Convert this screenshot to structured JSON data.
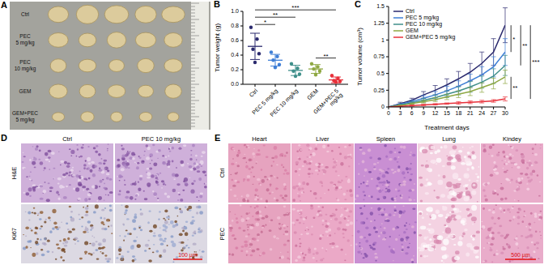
{
  "panel_labels": [
    "A",
    "B",
    "C",
    "D",
    "E"
  ],
  "photo_panels": {
    "A": {
      "rows": [
        "Ctrl",
        "PEC 5 mg/kg",
        "PEC 10 mg/kg",
        "GEM",
        "GEM+PEC 5 mg/kg"
      ]
    },
    "D": {
      "columns": [
        "Ctrl",
        "PEC 10 mg/kg"
      ],
      "rows": [
        "H&E",
        "Ki67"
      ],
      "scale_bar": "100 μm"
    },
    "E": {
      "columns": [
        "Heart",
        "Liver",
        "Spleen",
        "Lung",
        "Kindey"
      ],
      "rows": [
        "Ctrl",
        "PEC"
      ],
      "scale_bar": "500 μm"
    }
  },
  "chart_data": [
    {
      "type": "scatter",
      "y_label": "Tumor weight (g)",
      "categories": [
        "Ctrl",
        "PEC 5 mg/kg",
        "PEC 10 mg/kg",
        "GEM",
        "GEM+PEC 5 mg/kg"
      ],
      "values": [
        [
          0.78,
          0.62,
          0.48,
          0.42,
          0.3
        ],
        [
          0.44,
          0.38,
          0.33,
          0.27,
          0.23
        ],
        [
          0.28,
          0.22,
          0.18,
          0.14,
          0.11
        ],
        [
          0.28,
          0.24,
          0.21,
          0.18,
          0.13
        ],
        [
          0.12,
          0.08,
          0.05,
          0.04,
          0.03
        ]
      ],
      "means": [
        0.52,
        0.33,
        0.19,
        0.21,
        0.06
      ],
      "errors": [
        0.18,
        0.08,
        0.07,
        0.06,
        0.04
      ],
      "colors": [
        "#2b2a6e",
        "#3f7fd6",
        "#3f8f8a",
        "#8fa843",
        "#e8303a"
      ],
      "ylim": [
        0,
        1
      ],
      "yticks": [
        {
          "value": 0,
          "label": "0.0"
        },
        0.2,
        0.4,
        0.6,
        0.8,
        {
          "value": 1,
          "label": "1.0"
        }
      ],
      "annotations": [
        {
          "from": "Ctrl",
          "to": "PEC 5 mg/kg",
          "label": "*"
        },
        {
          "from": "Ctrl",
          "to": "PEC 10 mg/kg",
          "label": "**"
        },
        {
          "from": "Ctrl",
          "to": "GEM+PEC 5 mg/kg",
          "label": "***"
        },
        {
          "from": "GEM",
          "to": "GEM+PEC 5 mg/kg",
          "label": "**"
        }
      ]
    },
    {
      "type": "line",
      "x_label": "Treatment days",
      "y_label": "Tumor volume (cm³)",
      "x": [
        0,
        3,
        6,
        9,
        12,
        15,
        18,
        21,
        24,
        27,
        30
      ],
      "xlim": [
        0,
        30
      ],
      "xticks": [
        0,
        3,
        6,
        9,
        12,
        15,
        18,
        21,
        24,
        27,
        30
      ],
      "ylim": [
        0,
        1.5
      ],
      "yticks": [
        0,
        0.25,
        0.5,
        0.75,
        1,
        1.25,
        1.5
      ],
      "legend": "upper left",
      "series": [
        {
          "name": "Ctrl",
          "color": "#2b2a6e",
          "values": [
            0,
            0.05,
            0.1,
            0.18,
            0.25,
            0.33,
            0.42,
            0.52,
            0.65,
            0.82,
            1.22
          ],
          "errors": [
            0,
            0.02,
            0.03,
            0.05,
            0.07,
            0.09,
            0.11,
            0.13,
            0.17,
            0.2,
            0.26
          ]
        },
        {
          "name": "PEC 5 mg/kg",
          "color": "#3f7fd6",
          "values": [
            0,
            0.04,
            0.08,
            0.13,
            0.18,
            0.24,
            0.31,
            0.39,
            0.48,
            0.6,
            0.82
          ],
          "errors": [
            0,
            0.01,
            0.02,
            0.04,
            0.05,
            0.07,
            0.08,
            0.1,
            0.12,
            0.15,
            0.2
          ]
        },
        {
          "name": "PEC 10 mg/kg",
          "color": "#3f8f8a",
          "values": [
            0,
            0.03,
            0.06,
            0.1,
            0.14,
            0.19,
            0.24,
            0.3,
            0.37,
            0.46,
            0.62
          ],
          "errors": [
            0,
            0.01,
            0.02,
            0.03,
            0.04,
            0.05,
            0.06,
            0.08,
            0.09,
            0.11,
            0.15
          ]
        },
        {
          "name": "GEM",
          "color": "#8fa843",
          "values": [
            0,
            0.02,
            0.05,
            0.08,
            0.11,
            0.15,
            0.19,
            0.23,
            0.29,
            0.35,
            0.45
          ],
          "errors": [
            0,
            0.01,
            0.01,
            0.02,
            0.03,
            0.04,
            0.05,
            0.06,
            0.07,
            0.08,
            0.1
          ]
        },
        {
          "name": "GEM+PEC 5 mg/kg",
          "color": "#e8303a",
          "values": [
            0,
            0.01,
            0.02,
            0.03,
            0.04,
            0.05,
            0.06,
            0.07,
            0.08,
            0.09,
            0.12
          ],
          "errors": [
            0,
            0,
            0.01,
            0.01,
            0.01,
            0.01,
            0.02,
            0.02,
            0.02,
            0.02,
            0.03
          ]
        }
      ],
      "annotations": [
        {
          "from": "GEM",
          "to": "GEM+PEC 5 mg/kg",
          "label": "**"
        },
        {
          "from": "Ctrl",
          "to": "PEC 5 mg/kg",
          "label": "*"
        },
        {
          "from": "Ctrl",
          "to": "PEC 10 mg/kg",
          "label": "**"
        },
        {
          "from": "Ctrl",
          "to": "GEM+PEC 5 mg/kg",
          "label": "***"
        }
      ]
    }
  ]
}
